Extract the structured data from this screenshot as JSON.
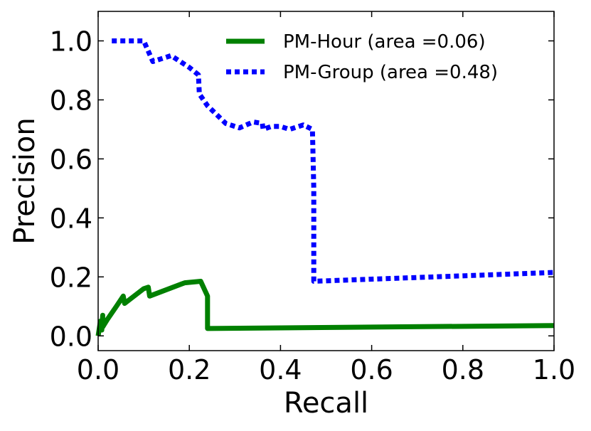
{
  "chart_data": {
    "type": "line",
    "xlabel": "Recall",
    "ylabel": "Precision",
    "xlim": [
      0.0,
      1.0
    ],
    "ylim": [
      -0.05,
      1.1
    ],
    "xticks": [
      "0.0",
      "0.2",
      "0.4",
      "0.6",
      "0.8",
      "1.0"
    ],
    "yticks": [
      "0.0",
      "0.2",
      "0.4",
      "0.6",
      "0.8",
      "1.0"
    ],
    "grid": false,
    "legend_position": "top-right",
    "series": [
      {
        "name": "PM-Hour (area =0.06)",
        "color": "#008000",
        "style": "solid",
        "x": [
          0.0,
          0.005,
          0.008,
          0.01,
          0.01,
          0.02,
          0.04,
          0.055,
          0.058,
          0.1,
          0.11,
          0.113,
          0.19,
          0.225,
          0.24,
          0.24,
          1.0
        ],
        "y": [
          0.0,
          0.05,
          0.02,
          0.07,
          0.03,
          0.055,
          0.1,
          0.135,
          0.11,
          0.16,
          0.165,
          0.135,
          0.18,
          0.185,
          0.135,
          0.025,
          0.035
        ]
      },
      {
        "name": "PM-Group (area =0.48)",
        "color": "#0000ff",
        "style": "dotted",
        "x": [
          0.03,
          0.1,
          0.12,
          0.16,
          0.2,
          0.22,
          0.222,
          0.24,
          0.28,
          0.31,
          0.34,
          0.36,
          0.362,
          0.38,
          0.4,
          0.42,
          0.45,
          0.47,
          0.473,
          0.473,
          1.0
        ],
        "y": [
          1.0,
          1.0,
          0.93,
          0.95,
          0.91,
          0.885,
          0.82,
          0.78,
          0.72,
          0.705,
          0.725,
          0.72,
          0.7,
          0.71,
          0.71,
          0.7,
          0.715,
          0.7,
          0.5,
          0.185,
          0.215
        ]
      }
    ]
  }
}
